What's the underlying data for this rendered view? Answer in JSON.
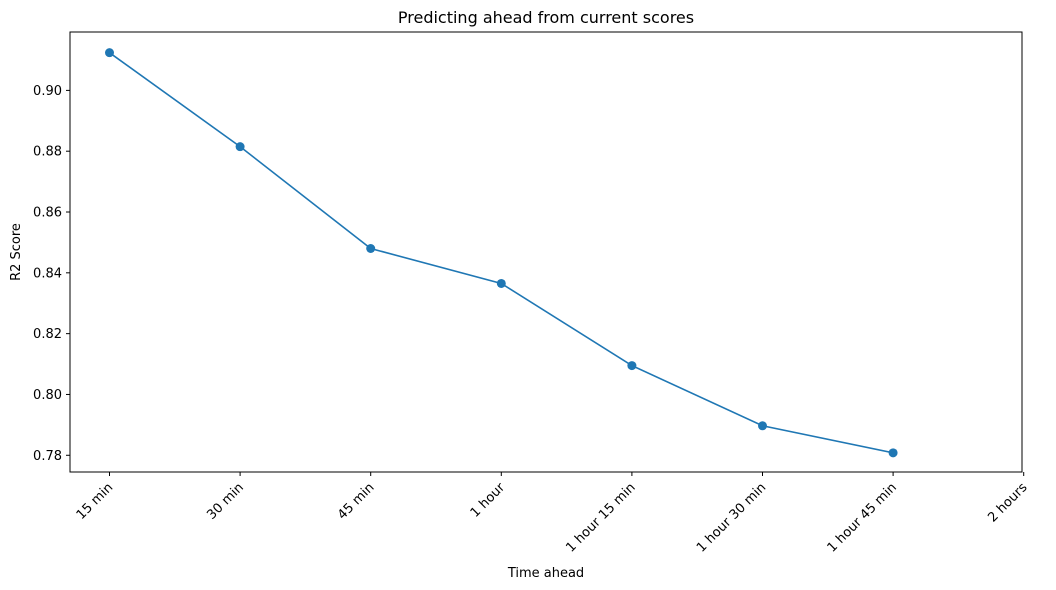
{
  "chart_data": {
    "type": "line",
    "title": "Predicting ahead from current scores",
    "xlabel": "Time ahead",
    "ylabel": "R2 Score",
    "categories": [
      "15 min",
      "30 min",
      "45 min",
      "1 hour",
      "1 hour 15 min",
      "1 hour 30 min",
      "1 hour 45 min",
      "2 hours"
    ],
    "series": [
      {
        "values": [
          0.9124,
          0.8815,
          0.848,
          0.8365,
          0.8095,
          0.7897,
          0.7808,
          null
        ]
      }
    ],
    "ylim": [
      0.7745,
      0.9192
    ],
    "yticks": [
      0.78,
      0.8,
      0.82,
      0.84,
      0.86,
      0.88,
      0.9
    ],
    "ytick_labels": [
      "0.78",
      "0.80",
      "0.82",
      "0.84",
      "0.86",
      "0.88",
      "0.90"
    ],
    "grid": false,
    "markers": true,
    "colors": {
      "series": "#1f77b4",
      "axes": "#000000",
      "background": "#ffffff"
    }
  }
}
